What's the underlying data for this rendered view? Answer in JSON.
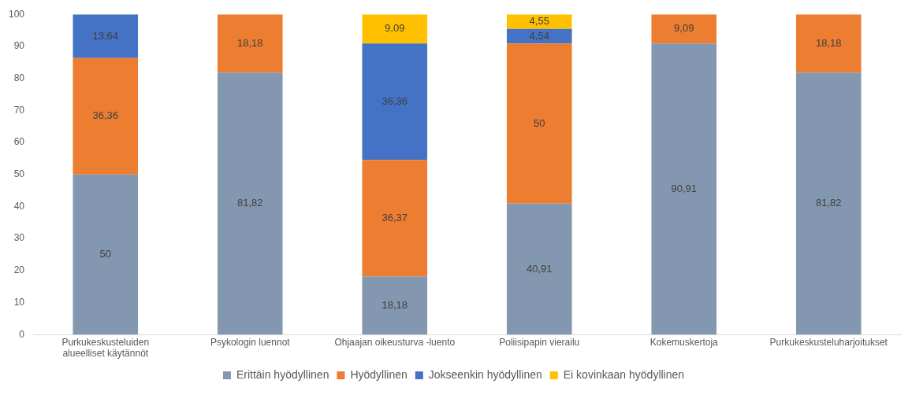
{
  "chart_data": {
    "type": "bar",
    "stacked": true,
    "categories": [
      "Purkukeskusteluiden alueelliset käytännöt",
      "Psykologin luennot",
      "Ohjaajan oikeusturva -luento",
      "Poliisipapin vierailu",
      "Kokemuskertoja",
      "Purkukeskusteluharjoitukset"
    ],
    "series": [
      {
        "name": "Erittäin hyödyllinen",
        "color": "#8497b0",
        "values": [
          50,
          81.82,
          18.18,
          40.91,
          90.91,
          81.82
        ],
        "value_labels": [
          "50",
          "81,82",
          "18,18",
          "40,91",
          "90,91",
          "81,82"
        ]
      },
      {
        "name": "Hyödyllinen",
        "color": "#ed7d31",
        "values": [
          36.36,
          18.18,
          36.37,
          50,
          9.09,
          18.18
        ],
        "value_labels": [
          "36,36",
          "18,18",
          "36,37",
          "50",
          "9,09",
          "18,18"
        ]
      },
      {
        "name": "Jokseenkin hyödyllinen",
        "color": "#4472c4",
        "values": [
          13.64,
          null,
          36.36,
          4.54,
          null,
          null
        ],
        "value_labels": [
          "13,64",
          null,
          "36,36",
          "4,54",
          null,
          null
        ]
      },
      {
        "name": "Ei kovinkaan hyödyllinen",
        "color": "#ffc000",
        "values": [
          null,
          null,
          9.09,
          4.55,
          null,
          null
        ],
        "value_labels": [
          null,
          null,
          "9,09",
          "4,55",
          null,
          null
        ]
      }
    ],
    "ylim": [
      0,
      100
    ],
    "yticks": [
      0,
      10,
      20,
      30,
      40,
      50,
      60,
      70,
      80,
      90,
      100
    ],
    "grid": false,
    "legend": "bottom"
  }
}
